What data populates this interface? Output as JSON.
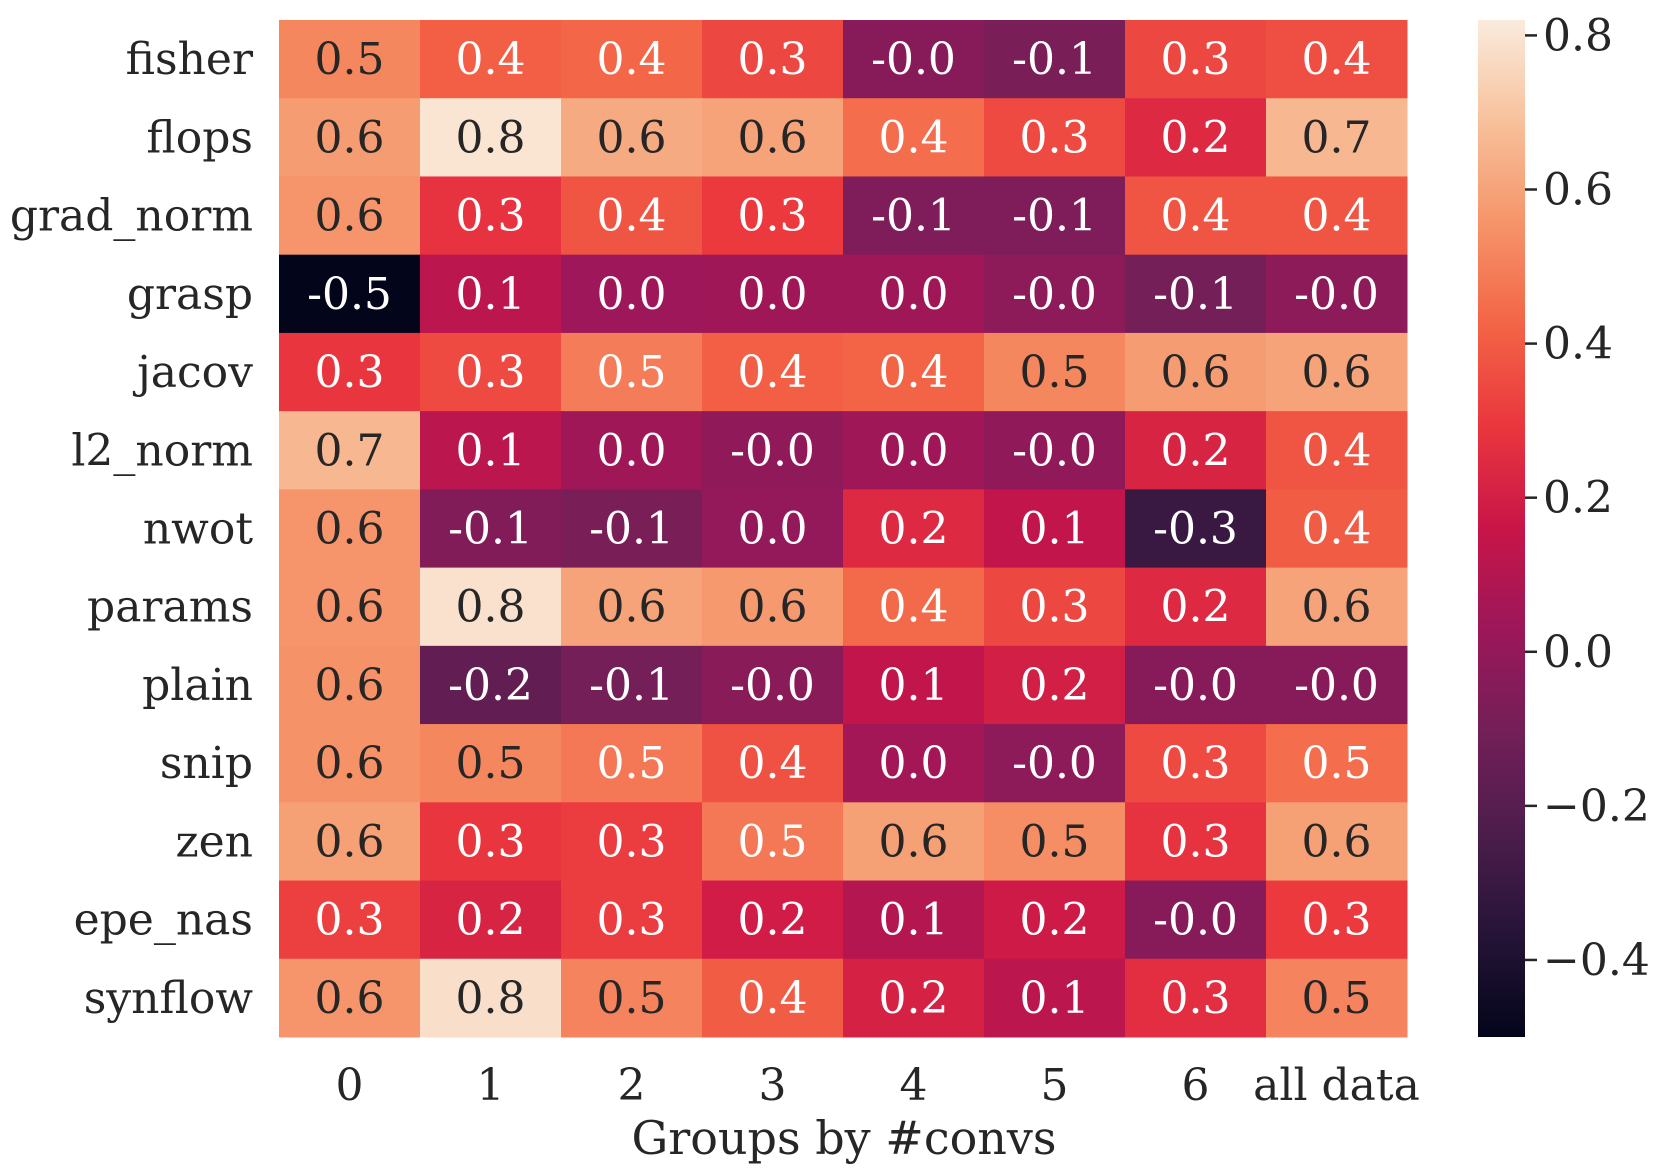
{
  "chart_data": {
    "type": "heatmap",
    "title": "",
    "xlabel": "Groups by #convs",
    "ylabel": "",
    "x_categories": [
      "0",
      "1",
      "2",
      "3",
      "4",
      "5",
      "6",
      "all data"
    ],
    "y_categories": [
      "fisher",
      "flops",
      "grad_norm",
      "grasp",
      "jacov",
      "l2_norm",
      "nwot",
      "params",
      "plain",
      "snip",
      "zen",
      "epe_nas",
      "synflow"
    ],
    "values": [
      [
        0.52,
        0.41,
        0.43,
        0.34,
        -0.04,
        -0.08,
        0.34,
        0.36
      ],
      [
        0.58,
        0.8,
        0.62,
        0.6,
        0.45,
        0.35,
        0.24,
        0.66
      ],
      [
        0.56,
        0.28,
        0.38,
        0.3,
        -0.07,
        -0.07,
        0.38,
        0.38
      ],
      [
        -0.5,
        0.12,
        0.03,
        0.04,
        0.04,
        -0.02,
        -0.1,
        -0.02
      ],
      [
        0.29,
        0.35,
        0.49,
        0.41,
        0.42,
        0.52,
        0.58,
        0.6
      ],
      [
        0.66,
        0.12,
        0.04,
        -0.01,
        0.04,
        -0.01,
        0.22,
        0.38
      ],
      [
        0.56,
        -0.06,
        -0.08,
        0.0,
        0.24,
        0.14,
        -0.3,
        0.4
      ],
      [
        0.56,
        0.79,
        0.6,
        0.57,
        0.44,
        0.34,
        0.24,
        0.6
      ],
      [
        0.55,
        -0.16,
        -0.1,
        -0.03,
        0.14,
        0.2,
        -0.04,
        -0.04
      ],
      [
        0.55,
        0.52,
        0.48,
        0.37,
        0.05,
        -0.02,
        0.35,
        0.45
      ],
      [
        0.59,
        0.29,
        0.31,
        0.48,
        0.59,
        0.54,
        0.28,
        0.59
      ],
      [
        0.32,
        0.22,
        0.31,
        0.19,
        0.1,
        0.18,
        -0.04,
        0.3
      ],
      [
        0.56,
        0.78,
        0.51,
        0.4,
        0.21,
        0.12,
        0.26,
        0.51
      ]
    ],
    "value_labels": [
      [
        "0.5",
        "0.4",
        "0.4",
        "0.3",
        "-0.0",
        "-0.1",
        "0.3",
        "0.4"
      ],
      [
        "0.6",
        "0.8",
        "0.6",
        "0.6",
        "0.4",
        "0.3",
        "0.2",
        "0.7"
      ],
      [
        "0.6",
        "0.3",
        "0.4",
        "0.3",
        "-0.1",
        "-0.1",
        "0.4",
        "0.4"
      ],
      [
        "-0.5",
        "0.1",
        "0.0",
        "0.0",
        "0.0",
        "-0.0",
        "-0.1",
        "-0.0"
      ],
      [
        "0.3",
        "0.3",
        "0.5",
        "0.4",
        "0.4",
        "0.5",
        "0.6",
        "0.6"
      ],
      [
        "0.7",
        "0.1",
        "0.0",
        "-0.0",
        "0.0",
        "-0.0",
        "0.2",
        "0.4"
      ],
      [
        "0.6",
        "-0.1",
        "-0.1",
        "0.0",
        "0.2",
        "0.1",
        "-0.3",
        "0.4"
      ],
      [
        "0.6",
        "0.8",
        "0.6",
        "0.6",
        "0.4",
        "0.3",
        "0.2",
        "0.6"
      ],
      [
        "0.6",
        "-0.2",
        "-0.1",
        "-0.0",
        "0.1",
        "0.2",
        "-0.0",
        "-0.0"
      ],
      [
        "0.6",
        "0.5",
        "0.5",
        "0.4",
        "0.0",
        "-0.0",
        "0.3",
        "0.5"
      ],
      [
        "0.6",
        "0.3",
        "0.3",
        "0.5",
        "0.6",
        "0.5",
        "0.3",
        "0.6"
      ],
      [
        "0.3",
        "0.2",
        "0.3",
        "0.2",
        "0.1",
        "0.2",
        "-0.0",
        "0.3"
      ],
      [
        "0.6",
        "0.8",
        "0.5",
        "0.4",
        "0.2",
        "0.1",
        "0.3",
        "0.5"
      ]
    ],
    "colormap": "rocket",
    "vmin": -0.5,
    "vmax": 0.82,
    "colorbar_ticks": [
      0.8,
      0.6,
      0.4,
      0.2,
      0.0,
      -0.2,
      -0.4
    ],
    "colorbar_tick_labels": [
      "0.8",
      "0.6",
      "0.4",
      "0.2",
      "0.0",
      "−0.2",
      "−0.4"
    ],
    "colorbar_placement": "right",
    "grid": false,
    "legend": "none"
  }
}
